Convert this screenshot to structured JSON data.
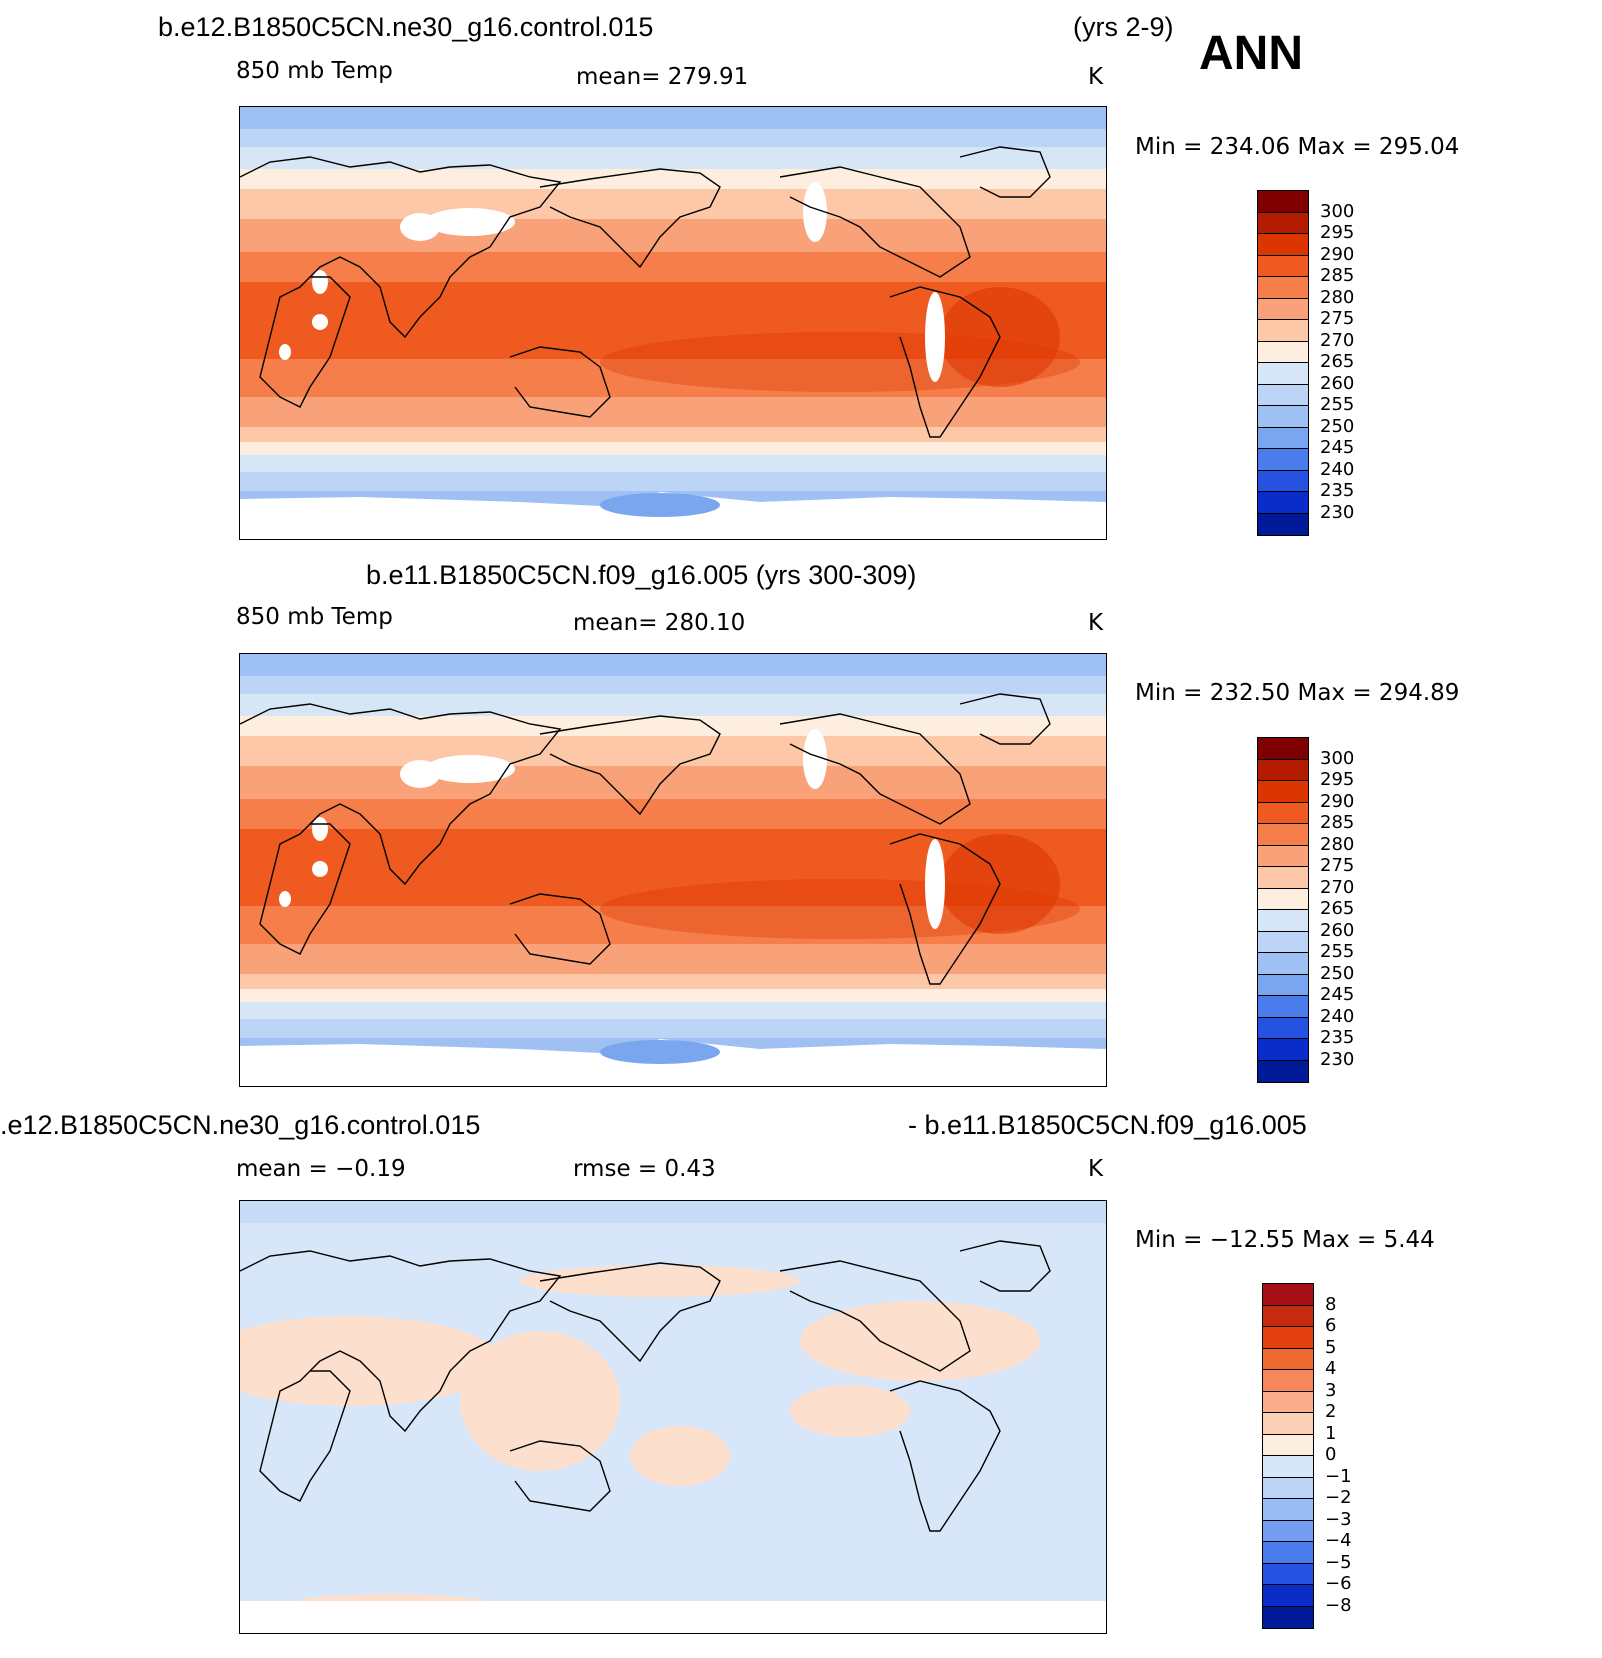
{
  "season": "ANN",
  "panels": [
    {
      "title_left": "b.e12.B1850C5CN.ne30_g16.control.015",
      "title_right": "(yrs 2-9)",
      "variable": "850 mb Temp",
      "mean_text": "mean=  279.91",
      "units": "K",
      "minmax": "Min  =  234.06  Max  =  295.04",
      "colorbar": {
        "labels": [
          "300",
          "295",
          "290",
          "285",
          "280",
          "275",
          "270",
          "265",
          "260",
          "255",
          "250",
          "245",
          "240",
          "235",
          "230"
        ],
        "colors": [
          "#7f0000",
          "#b31c00",
          "#dc3500",
          "#ee5a1f",
          "#f57e4a",
          "#f9a27a",
          "#fdc8a8",
          "#feeedf",
          "#d6e6f7",
          "#bcd4f5",
          "#9fc0f3",
          "#7aa5ef",
          "#4a7ceb",
          "#2552e0",
          "#0a2cc8",
          "#001a99"
        ]
      },
      "map_style": "full"
    },
    {
      "title_left": "b.e11.B1850C5CN.f09_g16.005 (yrs 300-309)",
      "title_right": "",
      "variable": "850 mb Temp",
      "mean_text": "mean=  280.10",
      "units": "K",
      "minmax": "Min  =  232.50  Max  =  294.89",
      "colorbar": {
        "labels": [
          "300",
          "295",
          "290",
          "285",
          "280",
          "275",
          "270",
          "265",
          "260",
          "255",
          "250",
          "245",
          "240",
          "235",
          "230"
        ],
        "colors": [
          "#7f0000",
          "#b31c00",
          "#dc3500",
          "#ee5a1f",
          "#f57e4a",
          "#f9a27a",
          "#fdc8a8",
          "#feeedf",
          "#d6e6f7",
          "#bcd4f5",
          "#9fc0f3",
          "#7aa5ef",
          "#4a7ceb",
          "#2552e0",
          "#0a2cc8",
          "#001a99"
        ]
      },
      "map_style": "full"
    },
    {
      "title_left": ".e12.B1850C5CN.ne30_g16.control.015",
      "title_right": "- b.e11.B1850C5CN.f09_g16.005",
      "variable": "mean =   −0.19",
      "mean_text": "rmse =    0.43",
      "units": "K",
      "minmax": "Min  =  −12.55  Max  =     5.44",
      "colorbar": {
        "labels": [
          "8",
          "6",
          "5",
          "4",
          "3",
          "2",
          "1",
          "0",
          "−1",
          "−2",
          "−3",
          "−4",
          "−5",
          "−6",
          "−8"
        ],
        "colors": [
          "#a50f15",
          "#c62b10",
          "#e3410f",
          "#f06a30",
          "#f5875a",
          "#f9ad8a",
          "#fcd0b4",
          "#fdeee0",
          "#d7e6f8",
          "#bcd4f5",
          "#9bbcf2",
          "#759ef0",
          "#4a7ceb",
          "#2552e0",
          "#0a2cc8",
          "#001a99"
        ]
      },
      "map_style": "diff"
    }
  ]
}
